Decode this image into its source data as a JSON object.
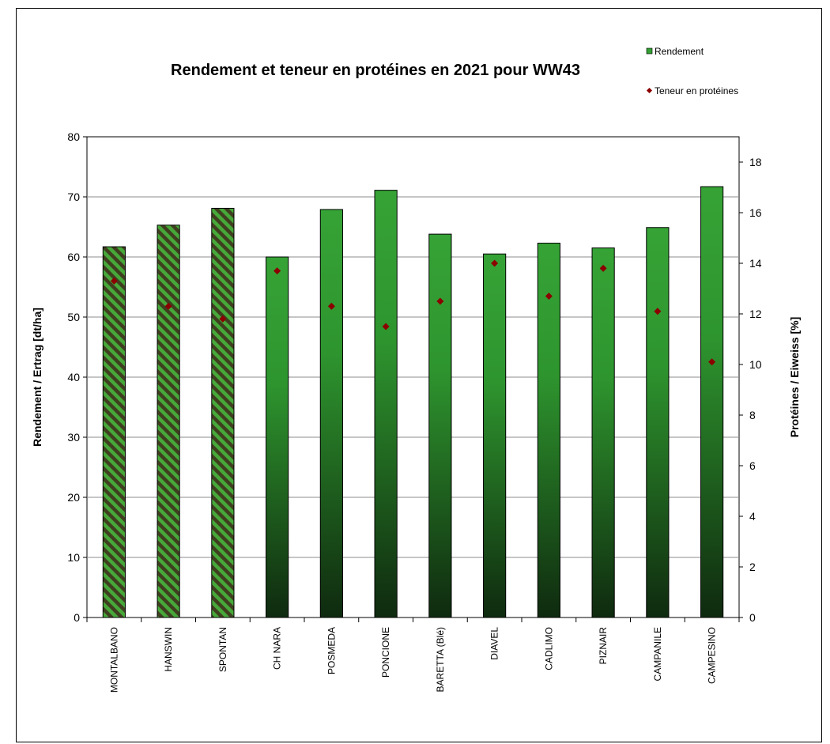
{
  "chart_data": {
    "type": "bar",
    "title": "Rendement et teneur en protéines en 2021 pour WW43",
    "ylabel": "Rendement / Ertrag  [dt/ha]",
    "y2label": "Protéines / Eiweiss [%]",
    "ylim": [
      0,
      80
    ],
    "y2lim": [
      0,
      19
    ],
    "yticks": [
      "0",
      "10",
      "20",
      "30",
      "40",
      "50",
      "60",
      "70",
      "80"
    ],
    "y2ticks": [
      "0",
      "2",
      "4",
      "6",
      "8",
      "10",
      "12",
      "14",
      "16",
      "18"
    ],
    "categories": [
      "MONTALBANO",
      "HANSWIN",
      "SPONTAN",
      "CH NARA",
      "POSMEDA",
      "PONCIONE",
      "BARETTA (Blé)",
      "DIAVEL",
      "CADLIMO",
      "PIZNAIR",
      "CAMPANILE",
      "CAMPESINO"
    ],
    "series": [
      {
        "name": "Rendement",
        "type": "bar",
        "axis": "left",
        "values": [
          61.7,
          65.3,
          68.1,
          60.0,
          67.9,
          71.1,
          63.8,
          60.5,
          62.3,
          61.5,
          64.9,
          71.7
        ],
        "hatched": [
          true,
          true,
          true,
          false,
          false,
          false,
          false,
          false,
          false,
          false,
          false,
          false
        ],
        "color": "#33a033"
      },
      {
        "name": "Teneur en protéines",
        "type": "scatter",
        "axis": "right",
        "values": [
          13.3,
          12.3,
          11.8,
          13.7,
          12.3,
          11.5,
          12.5,
          14.0,
          12.7,
          13.8,
          12.1,
          10.1
        ],
        "color": "#8b0000"
      }
    ],
    "grid": true,
    "legend_position": "top-right"
  }
}
